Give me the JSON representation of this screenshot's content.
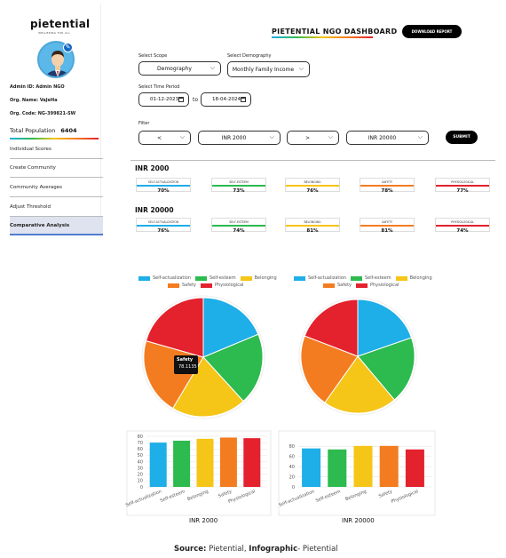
{
  "sidebar": {
    "logo": "pietential",
    "tagline": "WELLBEING FOR ALL",
    "admin_id": "Admin ID: Admin NGO",
    "org_name": "Org. Name: VaJeHa",
    "org_code": "Org. Code: NG-399821-SW",
    "total_population_label": "Total Population",
    "total_population_value": "6404",
    "items": [
      {
        "label": "Individual Scores"
      },
      {
        "label": "Create Community"
      },
      {
        "label": "Community Averages"
      },
      {
        "label": "Adjust Threshold"
      },
      {
        "label": "Comparative Analysis",
        "active": true
      }
    ]
  },
  "header": {
    "title": "PIETENTIAL NGO DASHBOARD",
    "download_label": "DOWNLOAD REPORT"
  },
  "filters": {
    "scope_label": "Select Scope",
    "scope_value": "Demography",
    "demography_label": "Select Demography",
    "demography_value": "Monthly Family Income",
    "time_label": "Select Time Period",
    "date_from": "01-12-2023",
    "date_to_word": "to",
    "date_to": "18-04-2024",
    "filter_label": "Filter",
    "op1": "<",
    "val1": "INR 2000",
    "op2": ">",
    "val2": "INR 20000",
    "submit_label": "SUBMIT"
  },
  "groups": [
    {
      "title": "INR 2000",
      "cards": [
        {
          "label": "SELF-ACTUALIZATION",
          "value": "70%",
          "color": "#1eaee8"
        },
        {
          "label": "SELF-ESTEEM",
          "value": "73%",
          "color": "#2dba4e"
        },
        {
          "label": "BELONGING",
          "value": "76%",
          "color": "#f5c518"
        },
        {
          "label": "SAFETY",
          "value": "78%",
          "color": "#f47c20"
        },
        {
          "label": "PHYSIOLOGICAL",
          "value": "77%",
          "color": "#e3222d"
        }
      ]
    },
    {
      "title": "INR 20000",
      "cards": [
        {
          "label": "SELF-ACTUALIZATION",
          "value": "76%",
          "color": "#1eaee8"
        },
        {
          "label": "SELF-ESTEEM",
          "value": "74%",
          "color": "#2dba4e"
        },
        {
          "label": "BELONGING",
          "value": "81%",
          "color": "#f5c518"
        },
        {
          "label": "SAFETY",
          "value": "81%",
          "color": "#f47c20"
        },
        {
          "label": "PHYSIOLOGICAL",
          "value": "74%",
          "color": "#e3222d"
        }
      ]
    }
  ],
  "tooltip": {
    "title": "Safety",
    "value": "78.1135"
  },
  "source_line": {
    "prefix": "Source:",
    "text1": " Pietential, ",
    "bold2": "Infographic",
    "text2": "- Pietential"
  },
  "chart_data": [
    {
      "type": "pie",
      "caption": "INR 2000",
      "categories": [
        "Self-actualization",
        "Self-esteem",
        "Belonging",
        "Safety",
        "Physiological"
      ],
      "values": [
        70,
        73,
        76,
        78,
        77
      ],
      "colors": [
        "#1eaee8",
        "#2dba4e",
        "#f5c518",
        "#f47c20",
        "#e3222d"
      ],
      "legend": "top"
    },
    {
      "type": "pie",
      "caption": "INR 20000",
      "categories": [
        "Self-actualization",
        "Self-esteem",
        "Belonging",
        "Safety",
        "Physiological"
      ],
      "values": [
        76,
        74,
        81,
        81,
        74
      ],
      "colors": [
        "#1eaee8",
        "#2dba4e",
        "#f5c518",
        "#f47c20",
        "#e3222d"
      ],
      "legend": "top"
    },
    {
      "type": "bar",
      "caption": "INR 2000",
      "categories": [
        "Self-actualization",
        "Self-esteem",
        "Belonging",
        "Safety",
        "Physiological"
      ],
      "values": [
        70,
        73,
        76,
        78,
        77
      ],
      "colors": [
        "#1eaee8",
        "#2dba4e",
        "#f5c518",
        "#f47c20",
        "#e3222d"
      ],
      "ylim": [
        0,
        80
      ],
      "yticks": [
        0,
        10,
        20,
        30,
        40,
        50,
        60,
        70,
        80
      ],
      "grid": true
    },
    {
      "type": "bar",
      "caption": "INR 20000",
      "categories": [
        "Self-actualization",
        "Self-esteem",
        "Belonging",
        "Safety",
        "Physiological"
      ],
      "values": [
        76,
        74,
        81,
        81,
        74
      ],
      "colors": [
        "#1eaee8",
        "#2dba4e",
        "#f5c518",
        "#f47c20",
        "#e3222d"
      ],
      "ylim": [
        0,
        100
      ],
      "yticks": [
        0,
        20,
        40,
        60,
        80
      ],
      "grid": true
    }
  ]
}
